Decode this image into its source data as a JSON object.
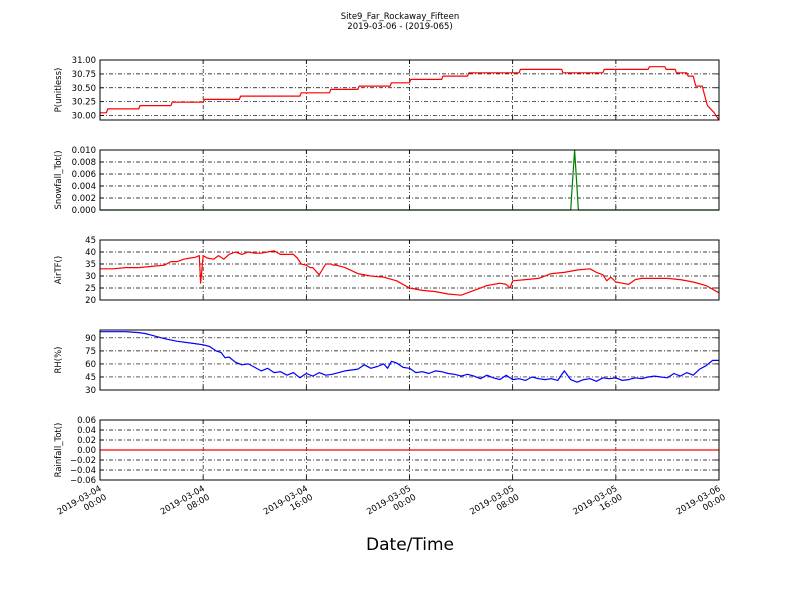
{
  "title": "Site9_Far_Rockaway_Fifteen",
  "subtitle": "2019-03-06 - (2019-065)",
  "xlabel": "Date/Time",
  "x_ticks": [
    {
      "t": 0,
      "line1": "2019-03-04",
      "line2": "00:00"
    },
    {
      "t": 8,
      "line1": "2019-03-04",
      "line2": "08:00"
    },
    {
      "t": 16,
      "line1": "2019-03-04",
      "line2": "16:00"
    },
    {
      "t": 24,
      "line1": "2019-03-05",
      "line2": "00:00"
    },
    {
      "t": 32,
      "line1": "2019-03-05",
      "line2": "08:00"
    },
    {
      "t": 40,
      "line1": "2019-03-05",
      "line2": "16:00"
    },
    {
      "t": 48,
      "line1": "2019-03-06",
      "line2": "00:00"
    }
  ],
  "chart_data": [
    {
      "type": "line",
      "ylabel": "P(unitless)",
      "ylim": [
        29.92,
        31.0
      ],
      "yticks": [
        30.0,
        30.25,
        30.5,
        30.75,
        31.0
      ],
      "ytick_labels": [
        "30.00",
        "30.25",
        "30.50",
        "30.75",
        "31.00"
      ],
      "grid": true,
      "series": [
        {
          "color": "#ff0000",
          "x": [
            0,
            0.5,
            0.6,
            3.0,
            3.1,
            5.5,
            5.6,
            8.0,
            8.1,
            10.8,
            10.9,
            15.5,
            15.6,
            17.8,
            17.9,
            20.0,
            20.1,
            22.5,
            22.6,
            24.0,
            24.1,
            26.5,
            26.6,
            28.5,
            28.6,
            32.5,
            32.6,
            35.8,
            35.9,
            39.0,
            39.1,
            42.5,
            42.6,
            43.8,
            43.9,
            44.6,
            44.7,
            45.5,
            45.6,
            46.0,
            46.2,
            46.7,
            47.1,
            47.6,
            48.0
          ],
          "y": [
            30.05,
            30.05,
            30.12,
            30.12,
            30.18,
            30.18,
            30.24,
            30.24,
            30.29,
            30.29,
            30.35,
            30.35,
            30.41,
            30.41,
            30.47,
            30.47,
            30.53,
            30.53,
            30.59,
            30.59,
            30.65,
            30.65,
            30.71,
            30.71,
            30.77,
            30.77,
            30.83,
            30.83,
            30.77,
            30.77,
            30.83,
            30.83,
            30.88,
            30.88,
            30.83,
            30.83,
            30.77,
            30.77,
            30.71,
            30.71,
            30.53,
            30.53,
            30.18,
            30.06,
            29.92
          ]
        }
      ]
    },
    {
      "type": "line",
      "ylabel": "Snowfall_Tot()",
      "ylim": [
        0.0,
        0.01
      ],
      "yticks": [
        0.0,
        0.002,
        0.004,
        0.006,
        0.008,
        0.01
      ],
      "ytick_labels": [
        "0.000",
        "0.002",
        "0.004",
        "0.006",
        "0.008",
        "0.010"
      ],
      "grid": true,
      "series": [
        {
          "color": "#008000",
          "x": [
            0,
            36.5,
            36.8,
            37.1,
            48
          ],
          "y": [
            0,
            0,
            0.01,
            0,
            0
          ]
        }
      ]
    },
    {
      "type": "line",
      "ylabel": "AirTF()",
      "ylim": [
        20,
        45
      ],
      "yticks": [
        20,
        25,
        30,
        35,
        40,
        45
      ],
      "ytick_labels": [
        "20",
        "25",
        "30",
        "35",
        "40",
        "45"
      ],
      "grid": true,
      "series": [
        {
          "color": "#ff0000",
          "x": [
            0,
            1,
            2,
            3,
            4,
            5,
            5.5,
            6,
            6.5,
            7,
            7.4,
            7.7,
            7.8,
            8.0,
            8.3,
            8.8,
            9.2,
            9.6,
            10,
            10.5,
            11,
            11.5,
            12,
            12.5,
            13,
            13.5,
            14,
            14.5,
            15,
            15.3,
            15.6,
            16,
            16.3,
            16.5,
            17,
            17.5,
            17.9,
            18.1,
            18.3,
            19,
            20,
            21,
            22,
            23,
            24,
            25,
            26,
            27,
            28,
            29,
            30,
            31,
            31.5,
            31.8,
            32,
            33,
            34,
            35,
            36,
            37,
            38,
            38.5,
            39,
            39.3,
            39.6,
            39.8,
            40,
            40.5,
            41,
            41.5,
            42,
            43,
            44,
            45,
            46,
            47,
            48
          ],
          "y": [
            33,
            33,
            33.5,
            33.5,
            34,
            34.5,
            36,
            36,
            37,
            37.5,
            37.8,
            38.5,
            27,
            38.5,
            37.5,
            37,
            38.5,
            37,
            39,
            40,
            39,
            40,
            39.5,
            39.5,
            40,
            40.5,
            39,
            39,
            39,
            37.5,
            35,
            34.5,
            33.5,
            33.5,
            30.5,
            35,
            35,
            34.5,
            34.5,
            33.5,
            31,
            30,
            29.5,
            28,
            25,
            24,
            23.5,
            22.5,
            22,
            24,
            26,
            27,
            26.5,
            25,
            28,
            28.5,
            29,
            31,
            31.5,
            32.5,
            33,
            31.5,
            30.5,
            28,
            29.5,
            28.5,
            27.5,
            27,
            26.5,
            28.5,
            29,
            29,
            29,
            28.5,
            27.5,
            26,
            23
          ]
        }
      ]
    },
    {
      "type": "line",
      "ylabel": "RH(%)",
      "ylim": [
        30,
        99
      ],
      "yticks": [
        30,
        45,
        60,
        75,
        90
      ],
      "ytick_labels": [
        "30",
        "45",
        "60",
        "75",
        "90"
      ],
      "grid": true,
      "series": [
        {
          "color": "#0000ff",
          "x": [
            0,
            2,
            3,
            3.5,
            4,
            5,
            6,
            7,
            7.5,
            8,
            8.5,
            9,
            9.4,
            9.7,
            10,
            10.5,
            11,
            11.5,
            12,
            12.5,
            13,
            13.5,
            14,
            14.5,
            15,
            15.5,
            16,
            16.5,
            17,
            17.5,
            18,
            19,
            20,
            20.5,
            21,
            21.5,
            22,
            22.3,
            22.6,
            23,
            23.5,
            24,
            24.5,
            25,
            25.5,
            26,
            26.5,
            27,
            27.5,
            28,
            28.5,
            29,
            29.5,
            30,
            30.5,
            31,
            31.5,
            32,
            32.5,
            33,
            33.5,
            34,
            34.5,
            35,
            35.5,
            36,
            36.5,
            37,
            37.5,
            38,
            38.5,
            39,
            39.5,
            40,
            40.5,
            41,
            41.5,
            42,
            42.5,
            43,
            43.5,
            44,
            44.5,
            45,
            45.5,
            46,
            46.5,
            47,
            47.5,
            48
          ],
          "y": [
            97,
            97,
            96,
            95,
            93,
            89,
            86,
            84,
            83,
            82,
            80,
            75,
            73,
            67,
            68,
            62,
            59,
            60,
            56,
            52,
            55,
            50,
            51,
            47,
            50,
            44,
            49,
            46,
            50,
            47,
            48,
            52,
            54,
            59,
            55,
            57,
            60,
            55,
            63,
            61,
            56,
            55,
            50,
            51,
            49,
            52,
            51,
            49,
            48,
            46,
            48,
            46,
            43,
            47,
            44,
            42,
            47,
            42,
            43,
            41,
            45,
            43,
            42,
            43,
            41,
            52,
            42,
            39,
            42,
            43,
            40,
            44,
            43,
            44,
            41,
            42,
            44,
            43,
            45,
            46,
            45,
            44,
            49,
            46,
            50,
            47,
            54,
            58,
            64,
            64
          ]
        }
      ]
    },
    {
      "type": "line",
      "ylabel": "Rainfall_Tot()",
      "ylim": [
        -0.06,
        0.06
      ],
      "yticks": [
        -0.06,
        -0.04,
        -0.02,
        0.0,
        0.02,
        0.04,
        0.06
      ],
      "ytick_labels": [
        "−0.06",
        "−0.04",
        "−0.02",
        "0.00",
        "0.02",
        "0.04",
        "0.06"
      ],
      "grid": true,
      "series": [
        {
          "color": "#ff0000",
          "x": [
            0,
            48
          ],
          "y": [
            0,
            0
          ]
        }
      ]
    }
  ]
}
